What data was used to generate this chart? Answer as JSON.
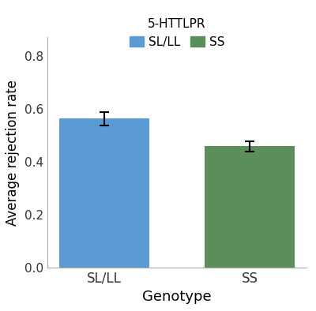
{
  "categories": [
    "SL/LL",
    "SS"
  ],
  "values": [
    0.562,
    0.458
  ],
  "errors": [
    0.025,
    0.02
  ],
  "bar_colors": [
    "#5b9bd5",
    "#5a8f5a"
  ],
  "xlabel": "Genotype",
  "ylabel": "Average rejection rate",
  "ylim": [
    0.0,
    0.87
  ],
  "yticks": [
    0.0,
    0.2,
    0.4,
    0.6,
    0.8
  ],
  "legend_title": "5-HTTLPR",
  "legend_labels": [
    "SL/LL",
    "SS"
  ],
  "legend_colors": [
    "#5b9bd5",
    "#5a8f5a"
  ],
  "bar_width": 0.62,
  "figsize": [
    4.0,
    3.94
  ],
  "dpi": 100,
  "background_color": "#ffffff",
  "error_capsize": 4,
  "error_linewidth": 1.5,
  "error_color": "black"
}
